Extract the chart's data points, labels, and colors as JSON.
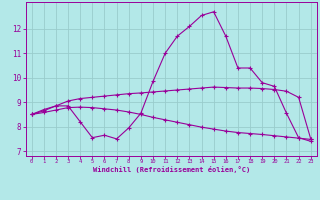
{
  "xlabel": "Windchill (Refroidissement éolien,°C)",
  "background_color": "#b3e8e8",
  "line_color": "#990099",
  "grid_color": "#99cccc",
  "x": [
    0,
    1,
    2,
    3,
    4,
    5,
    6,
    7,
    8,
    9,
    10,
    11,
    12,
    13,
    14,
    15,
    16,
    17,
    18,
    19,
    20,
    21,
    22,
    23
  ],
  "line1": [
    8.5,
    8.7,
    8.85,
    8.85,
    8.2,
    7.55,
    7.65,
    7.5,
    7.95,
    8.55,
    9.85,
    11.0,
    11.7,
    12.1,
    12.55,
    12.7,
    11.7,
    10.4,
    10.4,
    9.8,
    9.65,
    8.55,
    7.55,
    7.4
  ],
  "line2": [
    8.5,
    8.65,
    8.85,
    9.05,
    9.15,
    9.2,
    9.25,
    9.3,
    9.35,
    9.38,
    9.42,
    9.46,
    9.5,
    9.54,
    9.58,
    9.62,
    9.6,
    9.58,
    9.58,
    9.56,
    9.52,
    9.45,
    9.2,
    7.5
  ],
  "line3": [
    8.5,
    8.58,
    8.68,
    8.78,
    8.8,
    8.78,
    8.73,
    8.68,
    8.6,
    8.5,
    8.38,
    8.28,
    8.18,
    8.08,
    7.98,
    7.9,
    7.82,
    7.76,
    7.72,
    7.68,
    7.63,
    7.58,
    7.53,
    7.48
  ],
  "ylim": [
    6.8,
    13.1
  ],
  "yticks": [
    7,
    8,
    9,
    10,
    11,
    12
  ],
  "xticks": [
    0,
    1,
    2,
    3,
    4,
    5,
    6,
    7,
    8,
    9,
    10,
    11,
    12,
    13,
    14,
    15,
    16,
    17,
    18,
    19,
    20,
    21,
    22,
    23
  ]
}
